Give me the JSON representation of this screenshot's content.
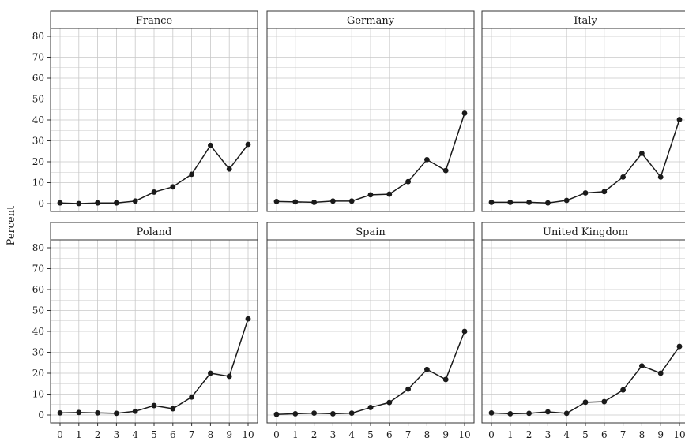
{
  "chart_data": {
    "type": "line",
    "ylabel": "Percent",
    "xlabel": "",
    "x": [
      0,
      1,
      2,
      3,
      4,
      5,
      6,
      7,
      8,
      9,
      10
    ],
    "xlim": [
      0,
      10
    ],
    "ylim": [
      0,
      80
    ],
    "y_ticks": [
      0,
      10,
      20,
      30,
      40,
      50,
      60,
      70,
      80
    ],
    "x_ticks": [
      0,
      1,
      2,
      3,
      4,
      5,
      6,
      7,
      8,
      9,
      10
    ],
    "grid": true,
    "legend": "none",
    "colors": {
      "line": "#1a1a1a",
      "grid": "#c8c8c8",
      "panel_border": "#333333"
    },
    "panels": [
      {
        "name": "France",
        "values": [
          0.3,
          0.0,
          0.3,
          0.3,
          1.2,
          5.5,
          8.0,
          14.0,
          27.8,
          16.5,
          28.3
        ]
      },
      {
        "name": "Germany",
        "values": [
          1.0,
          0.8,
          0.6,
          1.2,
          1.2,
          4.2,
          4.5,
          10.5,
          21.0,
          15.8,
          43.2
        ]
      },
      {
        "name": "Italy",
        "values": [
          0.6,
          0.6,
          0.6,
          0.3,
          1.5,
          5.1,
          5.7,
          12.7,
          24.0,
          12.7,
          40.2
        ]
      },
      {
        "name": "Poland",
        "values": [
          1.0,
          1.2,
          1.0,
          0.8,
          1.8,
          4.5,
          3.0,
          8.6,
          20.0,
          18.5,
          46.0
        ]
      },
      {
        "name": "Spain",
        "values": [
          0.3,
          0.6,
          0.9,
          0.6,
          0.9,
          3.6,
          6.0,
          12.4,
          21.8,
          17.0,
          40.0
        ]
      },
      {
        "name": "United Kingdom",
        "values": [
          1.0,
          0.6,
          0.8,
          1.5,
          0.8,
          6.1,
          6.4,
          12.0,
          23.5,
          20.0,
          32.8
        ]
      }
    ]
  }
}
